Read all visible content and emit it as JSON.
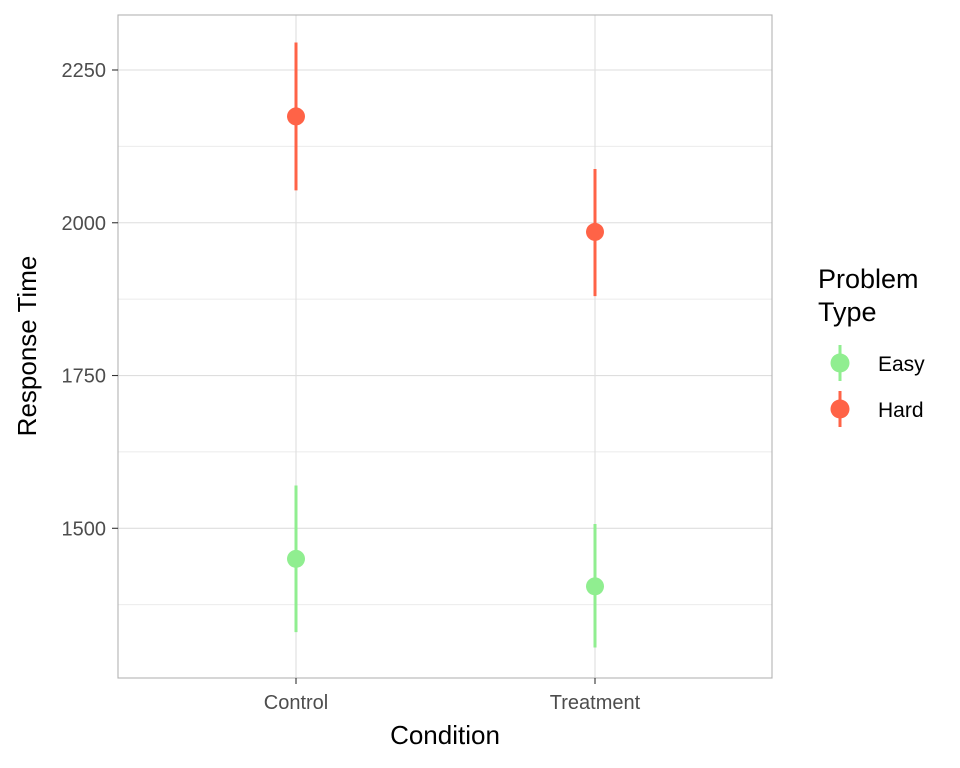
{
  "chart_data": {
    "type": "scatter",
    "subtype": "point-range",
    "title": "",
    "xlabel": "Condition",
    "ylabel": "Response Time",
    "categories": [
      "Control",
      "Treatment"
    ],
    "ylim": [
      1255,
      2340
    ],
    "y_ticks": [
      1500,
      1750,
      2000,
      2250
    ],
    "y_tick_labels": [
      "1500",
      "1750",
      "2000",
      "2250"
    ],
    "y_minor_ticks": [
      1375,
      1625,
      1875,
      2125
    ],
    "grid": true,
    "legend": {
      "title_lines": [
        "Problem",
        "Type"
      ],
      "placement": "right"
    },
    "series": [
      {
        "name": "Easy",
        "color": "#90ee90",
        "points": [
          {
            "x": "Control",
            "y": 1450,
            "lower": 1330,
            "upper": 1570
          },
          {
            "x": "Treatment",
            "y": 1405,
            "lower": 1305,
            "upper": 1507
          }
        ]
      },
      {
        "name": "Hard",
        "color": "#ff6347",
        "points": [
          {
            "x": "Control",
            "y": 2174,
            "lower": 2053,
            "upper": 2295
          },
          {
            "x": "Treatment",
            "y": 1985,
            "lower": 1880,
            "upper": 2088
          }
        ]
      }
    ]
  }
}
